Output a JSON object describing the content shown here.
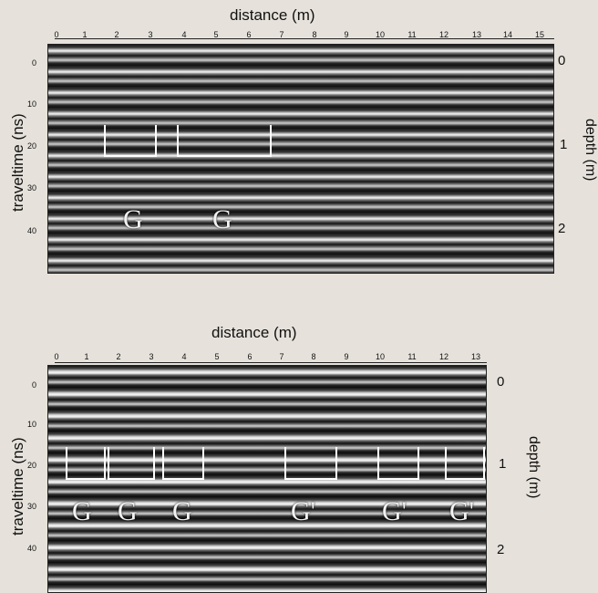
{
  "panels": [
    {
      "x_title": "distance (m)",
      "x_ticks": [
        "0",
        "1",
        "2",
        "3",
        "4",
        "5",
        "6",
        "7",
        "8",
        "9",
        "10",
        "11",
        "12",
        "13",
        "14",
        "15"
      ],
      "y_title": "traveltime (ns)",
      "y_ticks": [
        "0",
        "10",
        "20",
        "30",
        "40"
      ],
      "depth_title": "depth (m)",
      "depth_ticks": [
        "0",
        "1",
        "2"
      ],
      "annotations": [
        "G",
        "G"
      ]
    },
    {
      "x_title": "distance (m)",
      "x_ticks": [
        "0",
        "1",
        "2",
        "3",
        "4",
        "5",
        "6",
        "7",
        "8",
        "9",
        "10",
        "11",
        "12",
        "13"
      ],
      "y_title": "traveltime (ns)",
      "y_ticks": [
        "0",
        "10",
        "20",
        "30",
        "40"
      ],
      "depth_title": "depth (m)",
      "depth_ticks": [
        "0",
        "1",
        "2"
      ],
      "annotations": [
        "G",
        "G",
        "G",
        "G'",
        "G'",
        "G'"
      ]
    }
  ]
}
